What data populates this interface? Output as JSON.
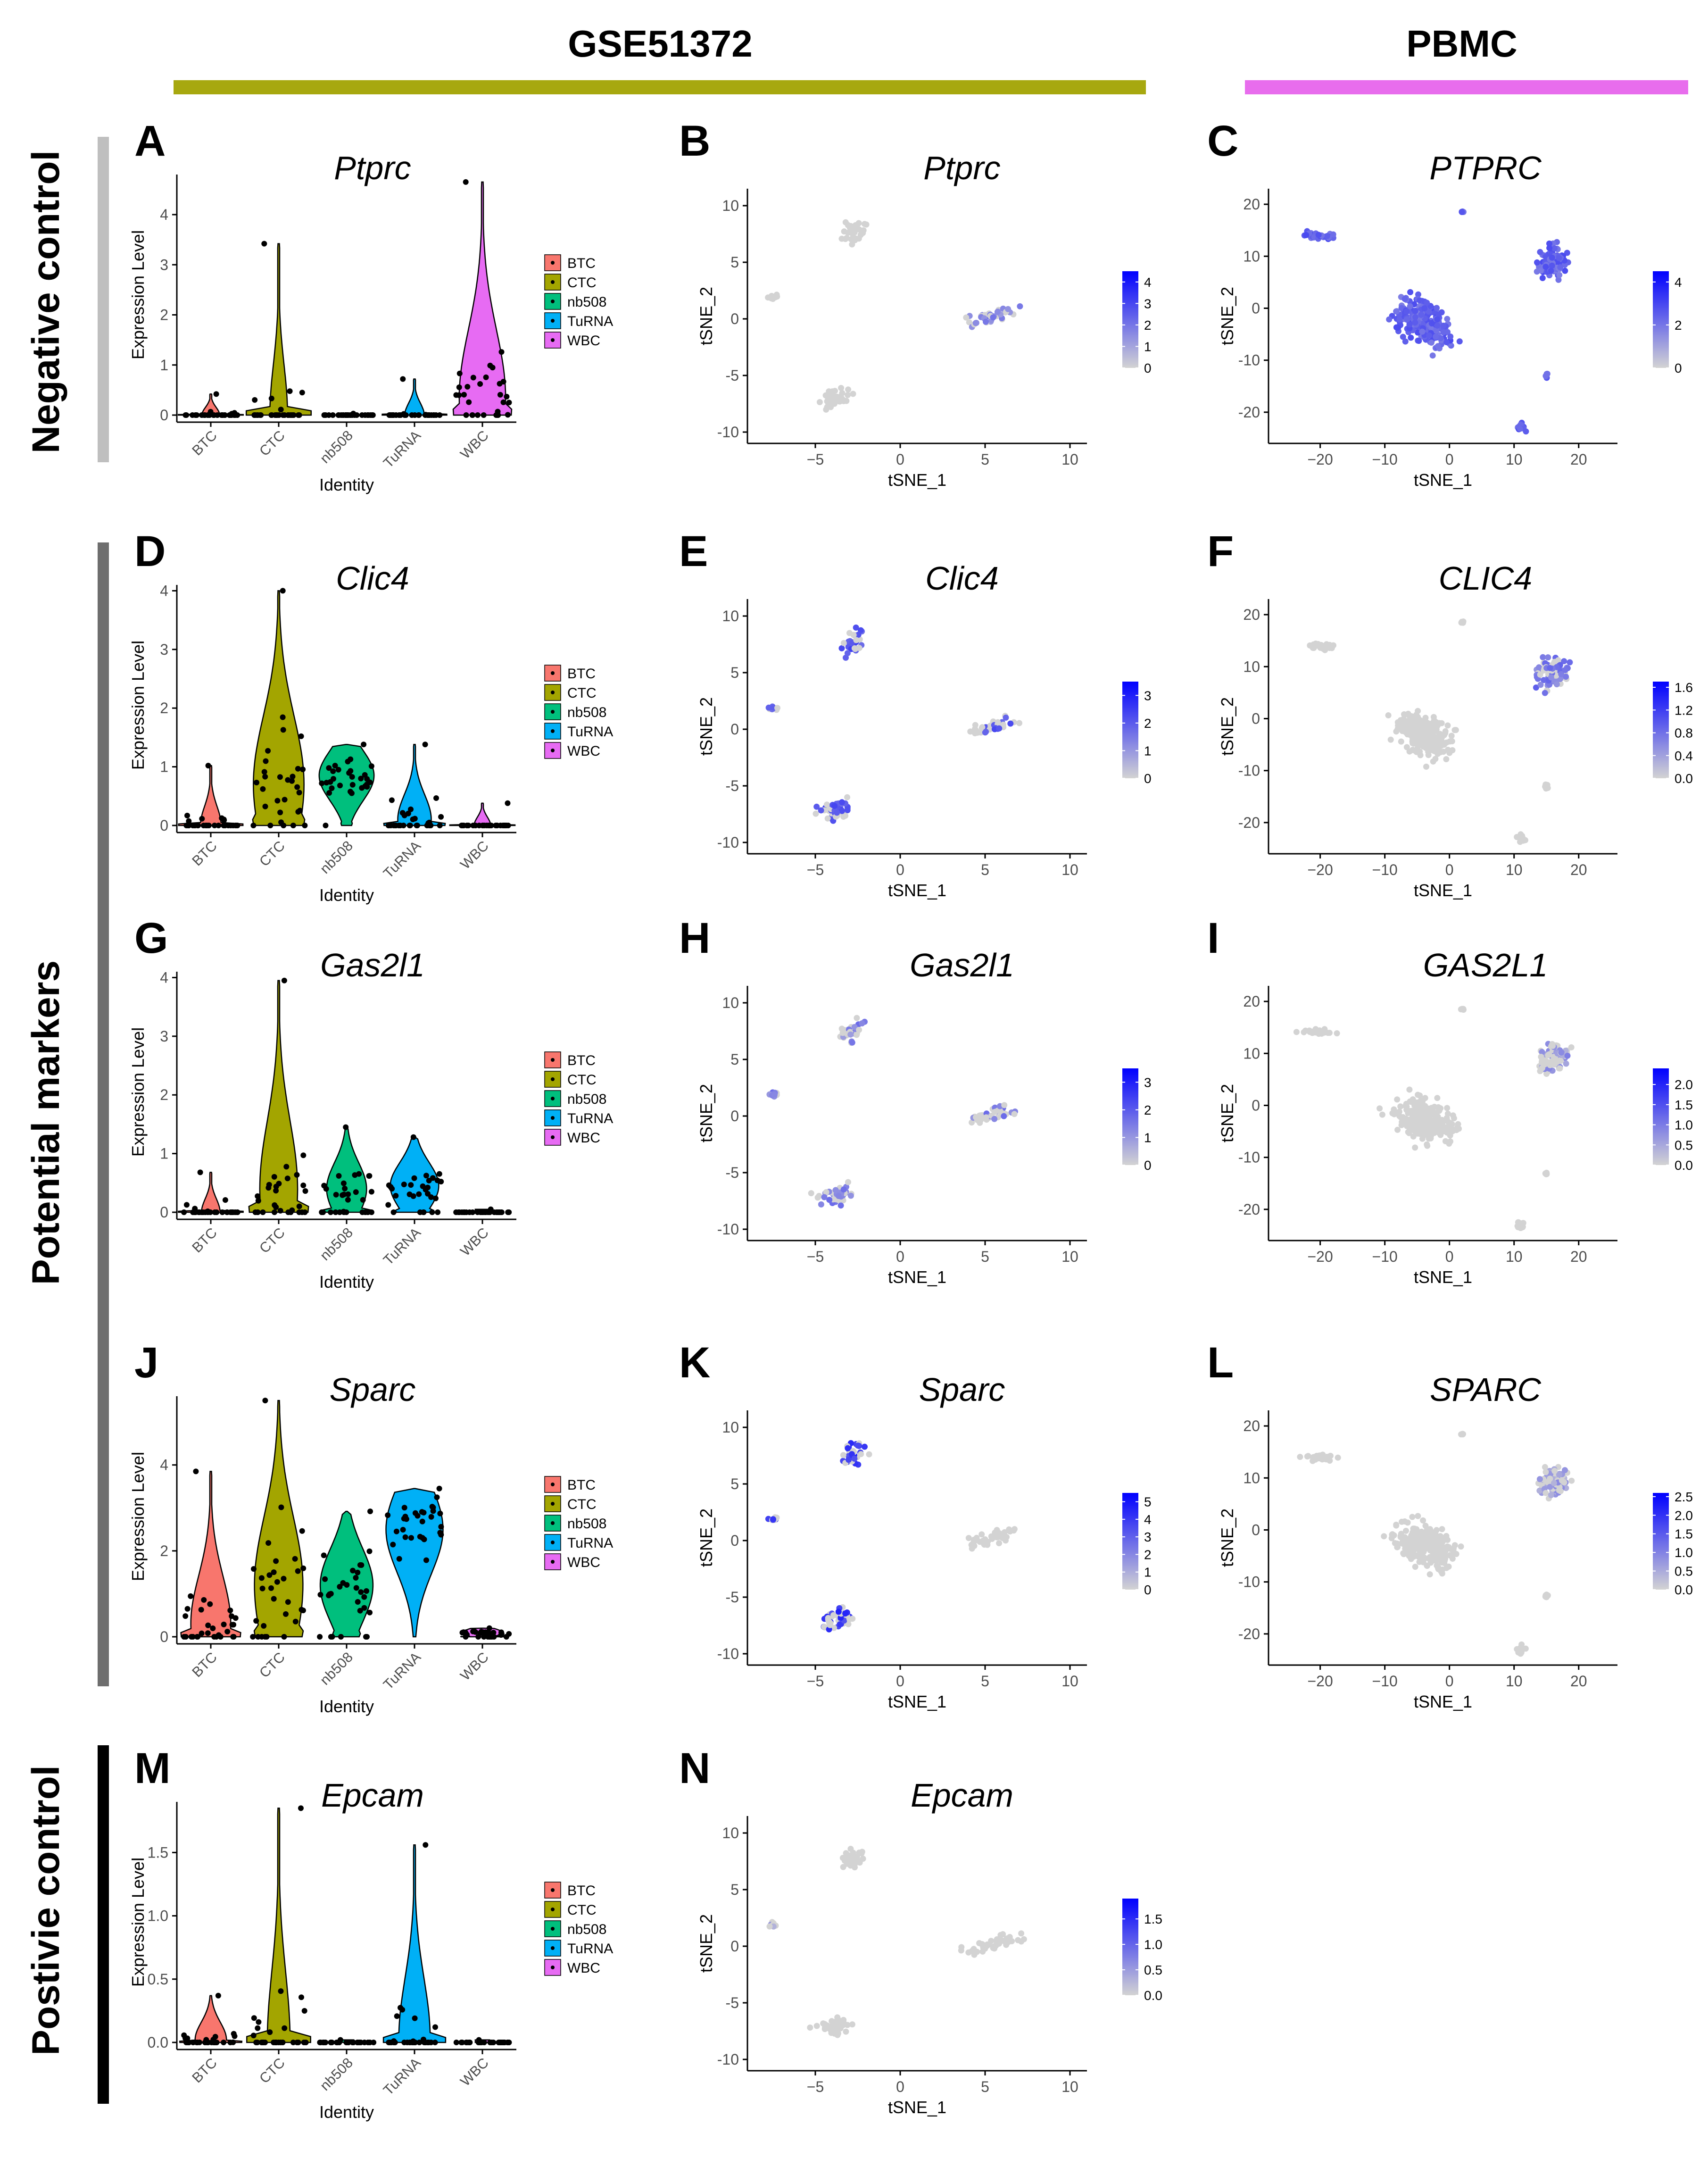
{
  "header": {
    "dataset_left": "GSE51372",
    "dataset_right": "PBMC",
    "left_color": "#a7a80f",
    "right_color": "#e86ded"
  },
  "groups": [
    {
      "label": "Negative control",
      "color": "#bfbfbf"
    },
    {
      "label": "Potential markers",
      "color": "#6e6e6e"
    },
    {
      "label": "Postivie control",
      "color": "#000000"
    }
  ],
  "legend": {
    "items": [
      "BTC",
      "CTC",
      "nb508",
      "TuRNA",
      "WBC"
    ],
    "colors": [
      "#F8766D",
      "#A3A500",
      "#00BF7D",
      "#00B0F6",
      "#E76BF3"
    ]
  },
  "axes": {
    "violin_x": "Identity",
    "violin_y": "Expression Level",
    "tsne_x": "tSNE_1",
    "tsne_y": "tSNE_2"
  },
  "chart_data": [
    {
      "id": "A",
      "type": "violin",
      "title": "Ptprc",
      "xlabel": "Identity",
      "ylabel": "Expression Level",
      "categories": [
        "BTC",
        "CTC",
        "nb508",
        "TuRNA",
        "WBC"
      ],
      "ylim": [
        0,
        4.8
      ],
      "yticks": [
        0,
        1,
        2,
        3,
        4
      ],
      "max": [
        0.42,
        3.42,
        0.03,
        0.72,
        4.65
      ],
      "median": [
        0,
        0,
        0,
        0,
        0.35
      ],
      "pct_nonzero": [
        0.08,
        0.08,
        0,
        0.12,
        0.75
      ]
    },
    {
      "id": "B",
      "type": "scatter",
      "embedding": "GSE51372",
      "title": "Ptprc",
      "xlabel": "tSNE_1",
      "ylabel": "tSNE_2",
      "xlim": [
        -9,
        11
      ],
      "ylim": [
        -11,
        11.5
      ],
      "xticks": [
        -5,
        0,
        5,
        10
      ],
      "yticks": [
        -10,
        -5,
        0,
        5,
        10
      ],
      "color_max": 4.5,
      "colorbar_ticks": [
        "0",
        "1",
        "2",
        "3",
        "4"
      ],
      "highlight": {
        "cluster": "right",
        "value": 0.25
      }
    },
    {
      "id": "C",
      "type": "scatter",
      "embedding": "PBMC",
      "title": "PTPRC",
      "xlabel": "tSNE_1",
      "ylabel": "tSNE_2",
      "xlim": [
        -28,
        26
      ],
      "ylim": [
        -26,
        23
      ],
      "xticks": [
        -20,
        -10,
        0,
        10,
        20
      ],
      "yticks": [
        -20,
        -10,
        0,
        10,
        20
      ],
      "color_max": 4.5,
      "colorbar_ticks": [
        "0",
        "2",
        "4"
      ],
      "highlight": {
        "cluster": "all",
        "value": 0.4
      }
    },
    {
      "id": "D",
      "type": "violin",
      "title": "Clic4",
      "xlabel": "Identity",
      "ylabel": "Expression Level",
      "categories": [
        "BTC",
        "CTC",
        "nb508",
        "TuRNA",
        "WBC"
      ],
      "ylim": [
        0,
        4.1
      ],
      "yticks": [
        0,
        1,
        2,
        3,
        4
      ],
      "max": [
        1.02,
        4.0,
        1.38,
        1.38,
        0.38
      ],
      "median": [
        0,
        0.7,
        0.85,
        0.1,
        0
      ],
      "pct_nonzero": [
        0.15,
        0.85,
        0.95,
        0.45,
        0.05
      ]
    },
    {
      "id": "E",
      "type": "scatter",
      "embedding": "GSE51372",
      "title": "Clic4",
      "xlabel": "tSNE_1",
      "ylabel": "tSNE_2",
      "xlim": [
        -9,
        11
      ],
      "ylim": [
        -11,
        11.5
      ],
      "xticks": [
        -5,
        0,
        5,
        10
      ],
      "yticks": [
        -10,
        -5,
        0,
        5,
        10
      ],
      "color_max": 3.5,
      "colorbar_ticks": [
        "0",
        "1",
        "2",
        "3"
      ],
      "highlight": {
        "cluster": "multi",
        "value": 0.45
      }
    },
    {
      "id": "F",
      "type": "scatter",
      "embedding": "PBMC",
      "title": "CLIC4",
      "xlabel": "tSNE_1",
      "ylabel": "tSNE_2",
      "xlim": [
        -28,
        26
      ],
      "ylim": [
        -26,
        23
      ],
      "xticks": [
        -20,
        -10,
        0,
        10,
        20
      ],
      "yticks": [
        -20,
        -10,
        0,
        10,
        20
      ],
      "color_max": 1.7,
      "colorbar_ticks": [
        "0.0",
        "0.4",
        "0.8",
        "1.2",
        "1.6"
      ],
      "highlight": {
        "cluster": "mono",
        "value": 0.3
      }
    },
    {
      "id": "G",
      "type": "violin",
      "title": "Gas2l1",
      "xlabel": "Identity",
      "ylabel": "Expression Level",
      "categories": [
        "BTC",
        "CTC",
        "nb508",
        "TuRNA",
        "WBC"
      ],
      "ylim": [
        0,
        4.1
      ],
      "yticks": [
        0,
        1,
        2,
        3,
        4
      ],
      "max": [
        0.68,
        3.95,
        1.45,
        1.28,
        0.05
      ],
      "median": [
        0,
        0.4,
        0.4,
        0.45,
        0
      ],
      "pct_nonzero": [
        0.1,
        0.55,
        0.6,
        0.8,
        0
      ]
    },
    {
      "id": "H",
      "type": "scatter",
      "embedding": "GSE51372",
      "title": "Gas2l1",
      "xlabel": "tSNE_1",
      "ylabel": "tSNE_2",
      "xlim": [
        -9,
        11
      ],
      "ylim": [
        -11,
        11.5
      ],
      "xticks": [
        -5,
        0,
        5,
        10
      ],
      "yticks": [
        -10,
        -5,
        0,
        5,
        10
      ],
      "color_max": 3.5,
      "colorbar_ticks": [
        "0",
        "1",
        "2",
        "3"
      ],
      "highlight": {
        "cluster": "multi",
        "value": 0.25
      }
    },
    {
      "id": "I",
      "type": "scatter",
      "embedding": "PBMC",
      "title": "GAS2L1",
      "xlabel": "tSNE_1",
      "ylabel": "tSNE_2",
      "xlim": [
        -28,
        26
      ],
      "ylim": [
        -26,
        23
      ],
      "xticks": [
        -20,
        -10,
        0,
        10,
        20
      ],
      "yticks": [
        -20,
        -10,
        0,
        10,
        20
      ],
      "color_max": 2.4,
      "colorbar_ticks": [
        "0.0",
        "0.5",
        "1.0",
        "1.5",
        "2.0"
      ],
      "highlight": {
        "cluster": "mono",
        "value": 0.15
      }
    },
    {
      "id": "J",
      "type": "violin",
      "title": "Sparc",
      "xlabel": "Identity",
      "ylabel": "Expression Level",
      "categories": [
        "BTC",
        "CTC",
        "nb508",
        "TuRNA",
        "WBC"
      ],
      "ylim": [
        0,
        5.6
      ],
      "yticks": [
        0,
        2,
        4
      ],
      "max": [
        3.85,
        5.5,
        2.92,
        3.45,
        0.2
      ],
      "median": [
        0.3,
        1.2,
        1.2,
        2.5,
        0.1
      ],
      "pct_nonzero": [
        0.6,
        0.8,
        0.9,
        1.0,
        0.6
      ]
    },
    {
      "id": "K",
      "type": "scatter",
      "embedding": "GSE51372",
      "title": "Sparc",
      "xlabel": "tSNE_1",
      "ylabel": "tSNE_2",
      "xlim": [
        -9,
        11
      ],
      "ylim": [
        -11,
        11.5
      ],
      "xticks": [
        -5,
        0,
        5,
        10
      ],
      "yticks": [
        -10,
        -5,
        0,
        5,
        10
      ],
      "color_max": 5.5,
      "colorbar_ticks": [
        "0",
        "1",
        "2",
        "3",
        "4",
        "5"
      ],
      "highlight": {
        "cluster": "sparc",
        "value": 0.6
      }
    },
    {
      "id": "L",
      "type": "scatter",
      "embedding": "PBMC",
      "title": "SPARC",
      "xlabel": "tSNE_1",
      "ylabel": "tSNE_2",
      "xlim": [
        -28,
        26
      ],
      "ylim": [
        -26,
        23
      ],
      "xticks": [
        -20,
        -10,
        0,
        10,
        20
      ],
      "yticks": [
        -20,
        -10,
        0,
        10,
        20
      ],
      "color_max": 2.6,
      "colorbar_ticks": [
        "0.0",
        "0.5",
        "1.0",
        "1.5",
        "2.0",
        "2.5"
      ],
      "highlight": {
        "cluster": "mono",
        "value": 0.1
      }
    },
    {
      "id": "M",
      "type": "violin",
      "title": "Epcam",
      "xlabel": "Identity",
      "ylabel": "Expression Level",
      "categories": [
        "BTC",
        "CTC",
        "nb508",
        "TuRNA",
        "WBC"
      ],
      "ylim": [
        0,
        1.9
      ],
      "yticks": [
        0,
        0.5,
        1,
        1.5
      ],
      "ytick_labels": [
        "0.0",
        "0.5",
        "1.0",
        "1.5"
      ],
      "max": [
        0.37,
        1.85,
        0.02,
        1.56,
        0.02
      ],
      "median": [
        0.02,
        0,
        0,
        0.03,
        0
      ],
      "pct_nonzero": [
        0.4,
        0.2,
        0,
        0.4,
        0
      ]
    },
    {
      "id": "N",
      "type": "scatter",
      "embedding": "GSE51372",
      "title": "Epcam",
      "xlabel": "tSNE_1",
      "ylabel": "tSNE_2",
      "xlim": [
        -9,
        11
      ],
      "ylim": [
        -11,
        11.5
      ],
      "xticks": [
        -5,
        0,
        5,
        10
      ],
      "yticks": [
        -10,
        -5,
        0,
        5,
        10
      ],
      "color_max": 1.9,
      "colorbar_ticks": [
        "0.0",
        "0.5",
        "1.0",
        "1.5"
      ],
      "highlight": {
        "cluster": "left",
        "value": 0.1
      }
    }
  ]
}
